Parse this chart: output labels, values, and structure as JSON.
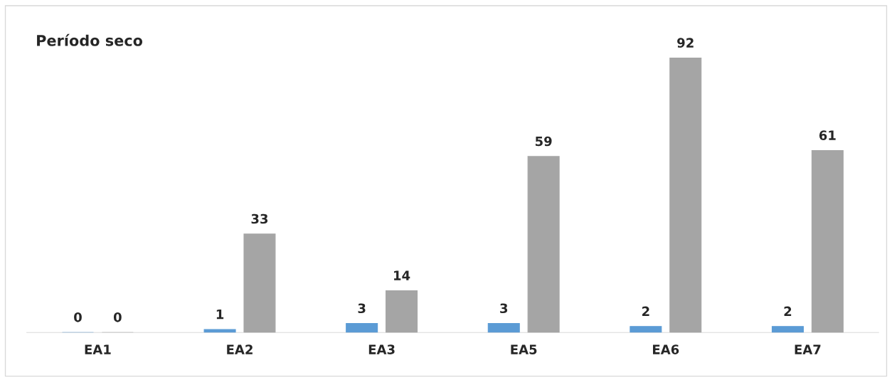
{
  "chart_data": {
    "type": "bar",
    "title": "Período seco",
    "categories": [
      "EA1",
      "EA2",
      "EA3",
      "EA5",
      "EA6",
      "EA7"
    ],
    "series": [
      {
        "color": "#5b9bd5",
        "values": [
          0,
          1,
          3,
          3,
          2,
          2
        ]
      },
      {
        "color": "#a5a5a5",
        "values": [
          0,
          33,
          14,
          59,
          92,
          61
        ]
      }
    ],
    "data_labels": true,
    "grid": false,
    "legend": false
  }
}
